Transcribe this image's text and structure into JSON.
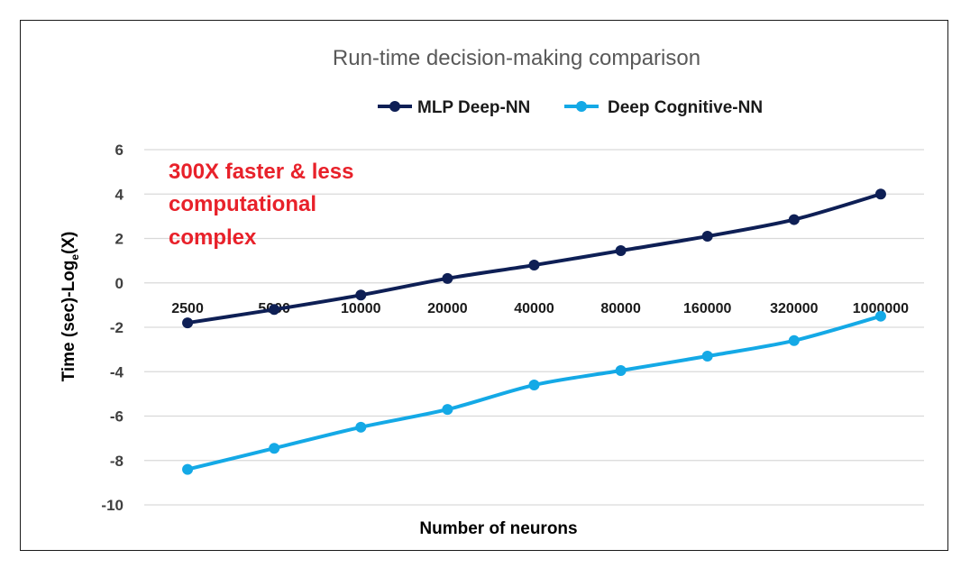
{
  "colors": {
    "series_mlp": "#0e1f55",
    "series_cognitive": "#14a9e6",
    "gridline": "#d9d9d9",
    "annotation": "#e8212a"
  },
  "chart_data": {
    "type": "line",
    "title": "Run-time decision-making comparison",
    "xlabel": "Number of neurons",
    "ylabel_main": "Time (sec)-Log",
    "ylabel_sub": "e",
    "ylabel_tail": "(X)",
    "categories": [
      "2500",
      "5000",
      "10000",
      "20000",
      "40000",
      "80000",
      "160000",
      "320000",
      "1000000"
    ],
    "series": [
      {
        "name": "MLP Deep-NN",
        "values": [
          -1.8,
          -1.2,
          -0.55,
          0.2,
          0.8,
          1.45,
          2.1,
          2.85,
          4.0
        ]
      },
      {
        "name": "Deep Cognitive-NN",
        "values": [
          -8.4,
          -7.45,
          -6.5,
          -5.7,
          -4.6,
          -3.95,
          -3.3,
          -2.6,
          -1.5
        ]
      }
    ],
    "ylim": [
      -10,
      6
    ],
    "yticks": [
      -10,
      -8,
      -6,
      -4,
      -2,
      0,
      2,
      4,
      6
    ],
    "ytick_labels": [
      "-10",
      "-8",
      "-6",
      "-4",
      "-2",
      "0",
      "2",
      "4",
      "6"
    ],
    "grid": true,
    "legend_position": "top-center",
    "annotation_lines": [
      "300X faster & less",
      "computational",
      "complex"
    ]
  }
}
